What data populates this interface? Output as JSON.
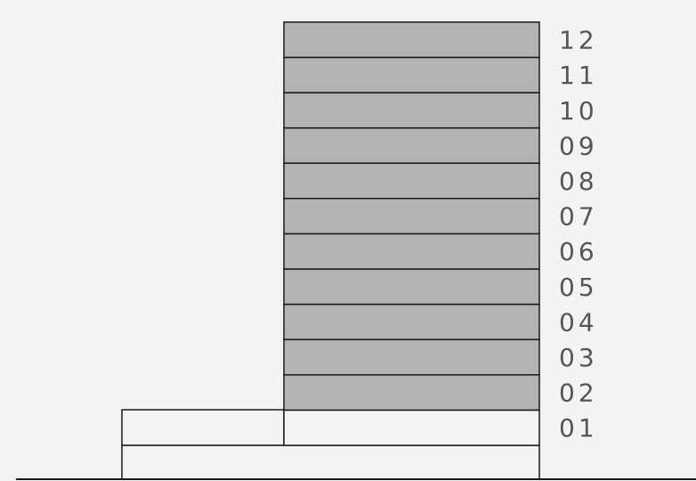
{
  "diagram": {
    "floors": [
      {
        "label": "01",
        "shaded": false
      },
      {
        "label": "02",
        "shaded": true
      },
      {
        "label": "03",
        "shaded": true
      },
      {
        "label": "04",
        "shaded": true
      },
      {
        "label": "05",
        "shaded": true
      },
      {
        "label": "06",
        "shaded": true
      },
      {
        "label": "07",
        "shaded": true
      },
      {
        "label": "08",
        "shaded": true
      },
      {
        "label": "09",
        "shaded": true
      },
      {
        "label": "10",
        "shaded": true
      },
      {
        "label": "11",
        "shaded": true
      },
      {
        "label": "12",
        "shaded": true
      }
    ],
    "colors": {
      "background": "#f3f3f3",
      "shaded_floor": "#b3b3b3",
      "unshaded_floor": "#f3f3f3",
      "outline": "#1a1a1a",
      "label": "#555555"
    }
  }
}
